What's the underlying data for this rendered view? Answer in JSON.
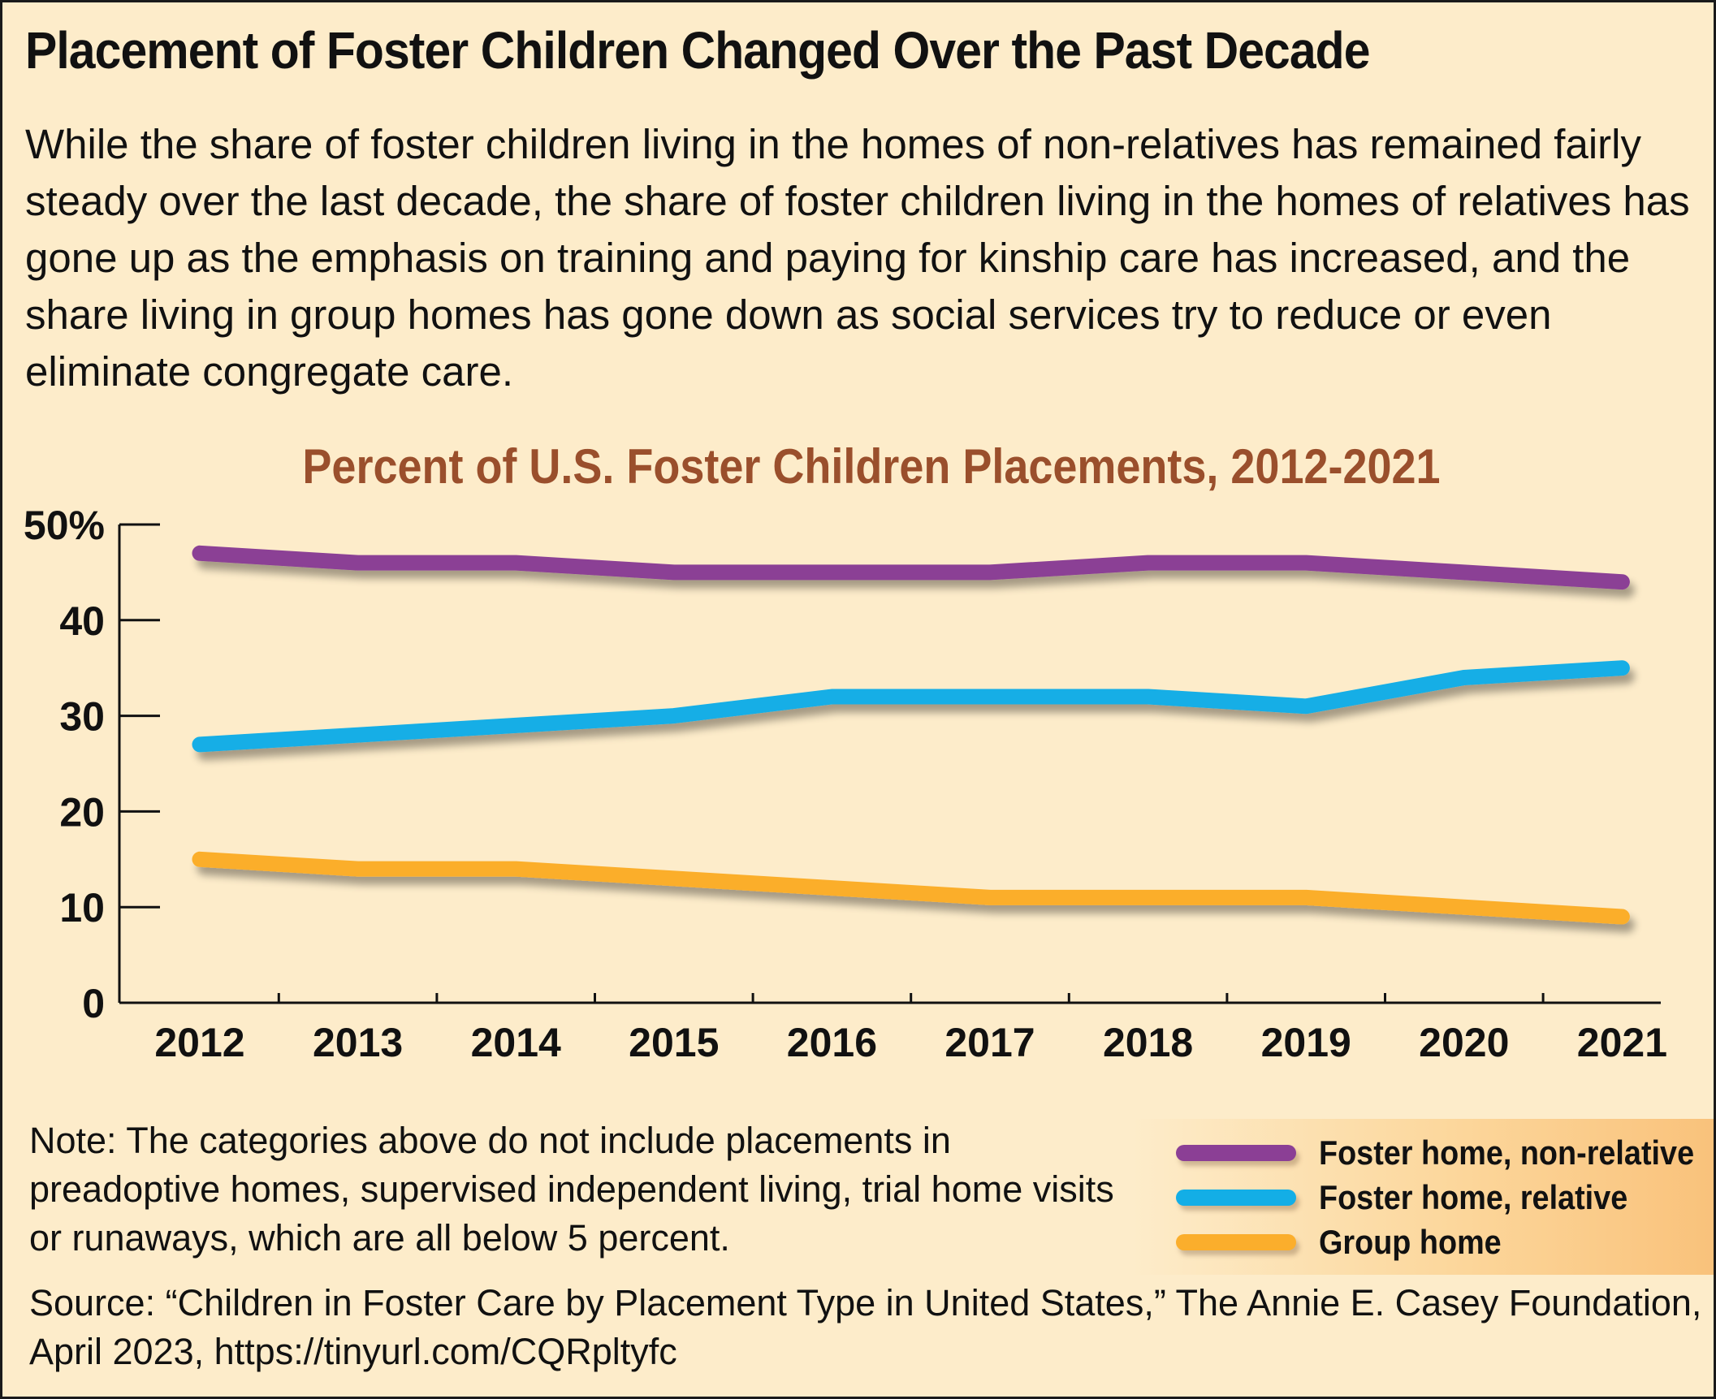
{
  "headline": "Placement of Foster Children Changed Over the Past Decade",
  "intro": "While the share of foster children living in the homes of non-relatives has remained fairly steady over the last decade, the share of foster children living in the homes of relatives has gone up as the emphasis on training and paying for kinship care has increased, and the share living in group homes has gone down as social services try to reduce or even eliminate congregate care.",
  "note": "Note: The categories above do not include placements in preadoptive homes, supervised independent living, trial home visits or runaways, which are all below 5 percent.",
  "source": "Source: “Children in Foster Care by Placement Type in United States,” The Annie E. Casey Foundation, April 2023, https://tinyurl.com/CQRpltyfc",
  "legend": {
    "items": [
      {
        "label": "Foster home, non-relative",
        "color": "#8b3f95"
      },
      {
        "label": "Foster home, relative",
        "color": "#13aee6"
      },
      {
        "label": "Group home",
        "color": "#fbae2c"
      }
    ]
  },
  "colors": {
    "background": "#fdecca",
    "chart_title": "#9a4f2c",
    "axis": "#111111"
  },
  "chart_data": {
    "type": "line",
    "title": "Percent of U.S. Foster Children Placements, 2012-2021",
    "xlabel": "",
    "ylabel": "",
    "categories": [
      "2012",
      "2013",
      "2014",
      "2015",
      "2016",
      "2017",
      "2018",
      "2019",
      "2020",
      "2021"
    ],
    "ylim": [
      0,
      50
    ],
    "yticks": [
      0,
      10,
      20,
      30,
      40,
      50
    ],
    "ytick_labels": [
      "0",
      "10",
      "20",
      "30",
      "40",
      "50%"
    ],
    "grid": false,
    "legend_position": "bottom-right",
    "series": [
      {
        "name": "Foster home, non-relative",
        "color": "#8b3f95",
        "values": [
          47,
          46,
          46,
          45,
          45,
          45,
          46,
          46,
          45,
          44
        ]
      },
      {
        "name": "Foster home, relative",
        "color": "#13aee6",
        "values": [
          27,
          28,
          29,
          30,
          32,
          32,
          32,
          31,
          34,
          35
        ]
      },
      {
        "name": "Group home",
        "color": "#fbae2c",
        "values": [
          15,
          14,
          14,
          13,
          12,
          11,
          11,
          11,
          10,
          9
        ]
      }
    ]
  }
}
